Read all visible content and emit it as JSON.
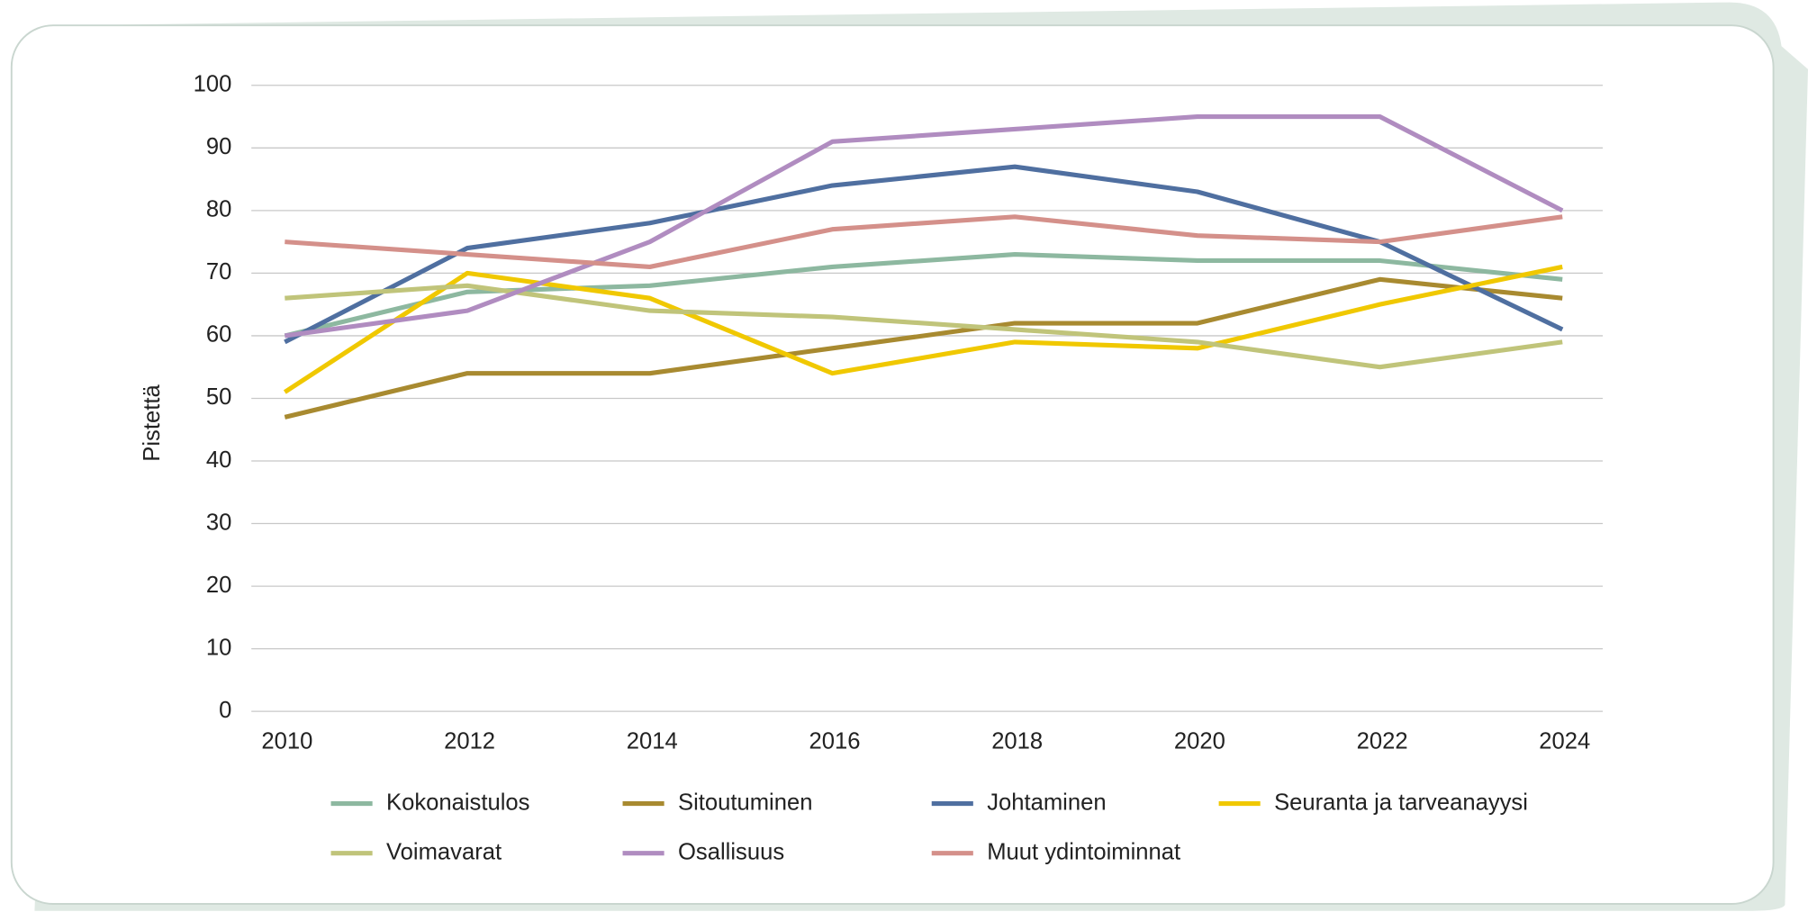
{
  "chart_data": {
    "type": "line",
    "y_label": "Pistettä",
    "x": [
      2010,
      2012,
      2014,
      2016,
      2018,
      2020,
      2022,
      2024
    ],
    "ylim": [
      0,
      100
    ],
    "yticks": [
      0,
      10,
      20,
      30,
      40,
      50,
      60,
      70,
      80,
      90,
      100
    ],
    "grid": true,
    "series": [
      {
        "name": "Kokonaistulos",
        "color": "#8db8a0",
        "values": [
          60,
          67,
          68,
          71,
          73,
          72,
          72,
          69
        ]
      },
      {
        "name": "Sitoutuminen",
        "color": "#a88a30",
        "values": [
          47,
          54,
          54,
          58,
          62,
          62,
          69,
          66
        ]
      },
      {
        "name": "Johtaminen",
        "color": "#4f6fa0",
        "values": [
          59,
          74,
          78,
          84,
          87,
          83,
          75,
          61
        ]
      },
      {
        "name": "Seuranta ja tarveanayysi",
        "color": "#f0c800",
        "values": [
          51,
          70,
          66,
          54,
          59,
          58,
          65,
          71
        ]
      },
      {
        "name": "Voimavarat",
        "color": "#c0c47a",
        "values": [
          66,
          68,
          64,
          63,
          61,
          59,
          55,
          59
        ]
      },
      {
        "name": "Osallisuus",
        "color": "#b08cc0",
        "values": [
          60,
          64,
          75,
          91,
          93,
          95,
          95,
          80
        ]
      },
      {
        "name": "Muut ydintoiminnat",
        "color": "#d4908a",
        "values": [
          75,
          73,
          71,
          77,
          79,
          76,
          75,
          79
        ]
      }
    ]
  }
}
